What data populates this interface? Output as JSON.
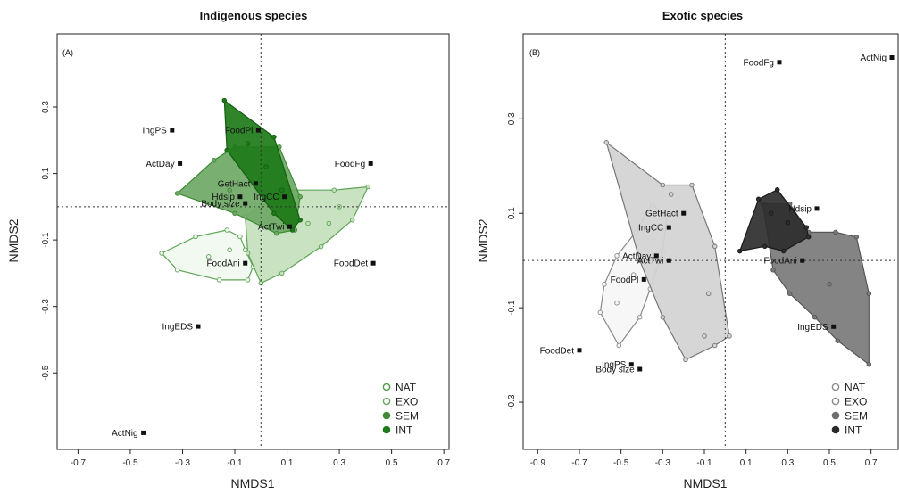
{
  "chart_data": [
    {
      "type": "scatter",
      "panel_label": "(A)",
      "title": "Indigenous species",
      "xlabel": "NMDS1",
      "ylabel": "NMDS2",
      "xlim": [
        -0.78,
        0.72
      ],
      "ylim": [
        -0.73,
        0.52
      ],
      "xticks": [
        "-0.7",
        "-0.5",
        "-0.3",
        "-0.1",
        "0.1",
        "0.3",
        "0.5",
        "0.7"
      ],
      "yticks": [
        "0.3",
        "0.1",
        "-0.1",
        "-0.3",
        "-0.5"
      ],
      "ref_lines": {
        "x": 0,
        "y": 0
      },
      "legend": {
        "position": "bottom-right",
        "entries": [
          {
            "label": "NAT",
            "color": "#4e9a46",
            "filled": false
          },
          {
            "label": "EXO",
            "color": "#6aa962",
            "filled": false
          },
          {
            "label": "SEM",
            "color": "#3f8a37",
            "filled": true
          },
          {
            "label": "INT",
            "color": "#1f7a1a",
            "filled": true
          }
        ]
      },
      "traits": [
        {
          "label": "ActNig",
          "x": -0.45,
          "y": -0.68
        },
        {
          "label": "IngEDS",
          "x": -0.24,
          "y": -0.36
        },
        {
          "label": "IngPS",
          "x": -0.34,
          "y": 0.23
        },
        {
          "label": "ActDay",
          "x": -0.31,
          "y": 0.13
        },
        {
          "label": "FoodPl",
          "x": -0.01,
          "y": 0.23
        },
        {
          "label": "GetHact",
          "x": -0.02,
          "y": 0.07
        },
        {
          "label": "Hdsip",
          "x": -0.08,
          "y": 0.03
        },
        {
          "label": "Body size",
          "x": -0.06,
          "y": 0.01
        },
        {
          "label": "IngCC",
          "x": 0.09,
          "y": 0.03
        },
        {
          "label": "ActTwi",
          "x": 0.11,
          "y": -0.06
        },
        {
          "label": "FoodAni",
          "x": -0.06,
          "y": -0.17
        },
        {
          "label": "FoodFg",
          "x": 0.42,
          "y": 0.13
        },
        {
          "label": "FoodDet",
          "x": 0.43,
          "y": -0.17
        }
      ],
      "hulls": [
        {
          "group": "NAT",
          "fill": "#f1f8ef",
          "stroke": "#5fa557",
          "vertices": [
            [
              -0.38,
              -0.14
            ],
            [
              -0.25,
              -0.09
            ],
            [
              -0.13,
              -0.07
            ],
            [
              -0.08,
              -0.09
            ],
            [
              -0.06,
              -0.13
            ],
            [
              -0.03,
              -0.18
            ],
            [
              -0.05,
              -0.22
            ],
            [
              -0.16,
              -0.22
            ],
            [
              -0.32,
              -0.19
            ]
          ],
          "points": [
            [
              -0.38,
              -0.14
            ],
            [
              -0.25,
              -0.09
            ],
            [
              -0.13,
              -0.07
            ],
            [
              -0.08,
              -0.09
            ],
            [
              -0.06,
              -0.13
            ],
            [
              -0.03,
              -0.18
            ],
            [
              -0.05,
              -0.22
            ],
            [
              -0.16,
              -0.22
            ],
            [
              -0.32,
              -0.19
            ],
            [
              -0.2,
              -0.15
            ],
            [
              -0.12,
              -0.13
            ]
          ]
        },
        {
          "group": "EXO",
          "fill": "#c4e0bd",
          "stroke": "#5fa557",
          "vertices": [
            [
              -0.06,
              -0.03
            ],
            [
              0.1,
              0.05
            ],
            [
              0.28,
              0.05
            ],
            [
              0.41,
              0.06
            ],
            [
              0.35,
              -0.04
            ],
            [
              0.23,
              -0.12
            ],
            [
              0.08,
              -0.2
            ],
            [
              0.0,
              -0.23
            ],
            [
              -0.05,
              -0.14
            ]
          ],
          "points": [
            [
              -0.06,
              -0.03
            ],
            [
              0.1,
              0.05
            ],
            [
              0.28,
              0.05
            ],
            [
              0.41,
              0.06
            ],
            [
              0.35,
              -0.04
            ],
            [
              0.23,
              -0.12
            ],
            [
              0.08,
              -0.2
            ],
            [
              0.0,
              -0.23
            ],
            [
              -0.05,
              -0.14
            ],
            [
              0.18,
              -0.05
            ],
            [
              0.26,
              -0.05
            ],
            [
              0.3,
              0.0
            ]
          ]
        },
        {
          "group": "SEM",
          "fill": "#6ea965",
          "stroke": "#3b8a33",
          "vertices": [
            [
              -0.32,
              0.04
            ],
            [
              -0.18,
              0.14
            ],
            [
              -0.1,
              0.18
            ],
            [
              0.07,
              0.18
            ],
            [
              0.15,
              0.03
            ],
            [
              0.13,
              -0.07
            ],
            [
              0.06,
              -0.08
            ],
            [
              -0.1,
              -0.02
            ]
          ],
          "points": [
            [
              -0.32,
              0.04
            ],
            [
              -0.18,
              0.14
            ],
            [
              -0.1,
              0.18
            ],
            [
              0.07,
              0.18
            ],
            [
              0.15,
              0.03
            ],
            [
              0.13,
              -0.07
            ],
            [
              0.06,
              -0.08
            ],
            [
              -0.1,
              -0.02
            ],
            [
              -0.12,
              0.05
            ],
            [
              0.0,
              0.09
            ]
          ]
        },
        {
          "group": "INT",
          "fill": "#1e7a18",
          "stroke": "#145f10",
          "vertices": [
            [
              -0.14,
              0.32
            ],
            [
              0.05,
              0.21
            ],
            [
              0.15,
              -0.04
            ],
            [
              0.12,
              -0.07
            ],
            [
              0.05,
              -0.02
            ],
            [
              -0.13,
              0.17
            ]
          ],
          "points": [
            [
              -0.14,
              0.32
            ],
            [
              0.05,
              0.21
            ],
            [
              0.15,
              -0.04
            ],
            [
              0.12,
              -0.07
            ],
            [
              0.05,
              -0.02
            ],
            [
              -0.13,
              0.17
            ],
            [
              -0.05,
              0.19
            ],
            [
              0.02,
              0.12
            ],
            [
              0.08,
              0.05
            ]
          ]
        }
      ]
    },
    {
      "type": "scatter",
      "panel_label": "(B)",
      "title": "Exotic species",
      "xlabel": "NMDS1",
      "ylabel": "NMDS2",
      "xlim": [
        -0.97,
        0.83
      ],
      "ylim": [
        -0.4,
        0.48
      ],
      "xticks": [
        "-0.9",
        "-0.7",
        "-0.5",
        "-0.3",
        "-0.1",
        "0.1",
        "0.3",
        "0.5",
        "0.7"
      ],
      "yticks": [
        "0.3",
        "0.1",
        "-0.1",
        "-0.3"
      ],
      "ref_lines": {
        "x": 0,
        "y": 0
      },
      "legend": {
        "position": "bottom-right",
        "entries": [
          {
            "label": "NAT",
            "color": "#8a8a8a",
            "filled": false
          },
          {
            "label": "EXO",
            "color": "#8a8a8a",
            "filled": false
          },
          {
            "label": "SEM",
            "color": "#6c6c6c",
            "filled": true
          },
          {
            "label": "INT",
            "color": "#2a2a2a",
            "filled": true
          }
        ]
      },
      "traits": [
        {
          "label": "FoodFg",
          "x": 0.26,
          "y": 0.42
        },
        {
          "label": "ActNig",
          "x": 0.8,
          "y": 0.43
        },
        {
          "label": "GetHact",
          "x": -0.2,
          "y": 0.1
        },
        {
          "label": "IngCC",
          "x": -0.27,
          "y": 0.07
        },
        {
          "label": "ActDay",
          "x": -0.33,
          "y": 0.01
        },
        {
          "label": "ActTwi",
          "x": -0.27,
          "y": 0.0
        },
        {
          "label": "FoodPl",
          "x": -0.39,
          "y": -0.04
        },
        {
          "label": "FoodDet",
          "x": -0.7,
          "y": -0.19
        },
        {
          "label": "IngPS",
          "x": -0.45,
          "y": -0.22
        },
        {
          "label": "Body size",
          "x": -0.41,
          "y": -0.23
        },
        {
          "label": "Hdsip",
          "x": 0.44,
          "y": 0.11
        },
        {
          "label": "FoodAni",
          "x": 0.37,
          "y": 0.0
        },
        {
          "label": "IngEDS",
          "x": 0.52,
          "y": -0.14
        }
      ],
      "hulls": [
        {
          "group": "NAT",
          "fill": "#f6f6f6",
          "stroke": "#8a8a8a",
          "vertices": [
            [
              -0.6,
              -0.11
            ],
            [
              -0.51,
              -0.18
            ],
            [
              -0.41,
              -0.12
            ],
            [
              -0.36,
              -0.06
            ],
            [
              -0.3,
              0.02
            ],
            [
              -0.28,
              0.09
            ],
            [
              -0.35,
              0.12
            ],
            [
              -0.43,
              0.06
            ],
            [
              -0.52,
              0.01
            ],
            [
              -0.58,
              -0.05
            ]
          ],
          "points": [
            [
              -0.6,
              -0.11
            ],
            [
              -0.51,
              -0.18
            ],
            [
              -0.41,
              -0.12
            ],
            [
              -0.36,
              -0.06
            ],
            [
              -0.3,
              0.02
            ],
            [
              -0.28,
              0.09
            ],
            [
              -0.35,
              0.12
            ],
            [
              -0.43,
              0.06
            ],
            [
              -0.52,
              0.01
            ],
            [
              -0.58,
              -0.05
            ],
            [
              -0.52,
              -0.09
            ],
            [
              -0.44,
              -0.03
            ]
          ]
        },
        {
          "group": "EXO",
          "fill": "#d2d2d2",
          "stroke": "#777777",
          "vertices": [
            [
              -0.57,
              0.25
            ],
            [
              -0.3,
              0.16
            ],
            [
              -0.16,
              0.16
            ],
            [
              -0.05,
              0.03
            ],
            [
              0.02,
              -0.16
            ],
            [
              -0.05,
              -0.18
            ],
            [
              -0.19,
              -0.21
            ],
            [
              -0.3,
              -0.12
            ],
            [
              -0.41,
              0.0
            ]
          ],
          "points": [
            [
              -0.57,
              0.25
            ],
            [
              -0.3,
              0.16
            ],
            [
              -0.16,
              0.16
            ],
            [
              -0.05,
              0.03
            ],
            [
              0.02,
              -0.16
            ],
            [
              -0.05,
              -0.18
            ],
            [
              -0.19,
              -0.21
            ],
            [
              -0.3,
              -0.12
            ],
            [
              -0.41,
              0.0
            ],
            [
              -0.26,
              0.14
            ],
            [
              -0.08,
              -0.07
            ],
            [
              -0.1,
              -0.16
            ]
          ]
        },
        {
          "group": "SEM",
          "fill": "#7a7a7a",
          "stroke": "#555555",
          "vertices": [
            [
              0.18,
              0.12
            ],
            [
              0.31,
              0.12
            ],
            [
              0.4,
              0.06
            ],
            [
              0.53,
              0.06
            ],
            [
              0.63,
              0.05
            ],
            [
              0.69,
              -0.07
            ],
            [
              0.69,
              -0.22
            ],
            [
              0.54,
              -0.17
            ],
            [
              0.43,
              -0.12
            ],
            [
              0.31,
              -0.07
            ],
            [
              0.23,
              -0.02
            ]
          ],
          "points": [
            [
              0.18,
              0.12
            ],
            [
              0.31,
              0.12
            ],
            [
              0.4,
              0.06
            ],
            [
              0.53,
              0.06
            ],
            [
              0.63,
              0.05
            ],
            [
              0.69,
              -0.07
            ],
            [
              0.69,
              -0.22
            ],
            [
              0.54,
              -0.17
            ],
            [
              0.43,
              -0.12
            ],
            [
              0.31,
              -0.07
            ],
            [
              0.23,
              -0.02
            ],
            [
              0.5,
              -0.05
            ]
          ]
        },
        {
          "group": "INT",
          "fill": "#2e2e2e",
          "stroke": "#1a1a1a",
          "vertices": [
            [
              0.07,
              0.02
            ],
            [
              0.16,
              0.13
            ],
            [
              0.25,
              0.15
            ],
            [
              0.39,
              0.07
            ],
            [
              0.4,
              0.05
            ],
            [
              0.28,
              0.02
            ],
            [
              0.19,
              0.03
            ]
          ],
          "points": [
            [
              0.07,
              0.02
            ],
            [
              0.16,
              0.13
            ],
            [
              0.25,
              0.15
            ],
            [
              0.39,
              0.07
            ],
            [
              0.4,
              0.05
            ],
            [
              0.28,
              0.02
            ],
            [
              0.19,
              0.03
            ],
            [
              0.22,
              0.1
            ],
            [
              0.3,
              0.08
            ]
          ]
        }
      ]
    }
  ]
}
